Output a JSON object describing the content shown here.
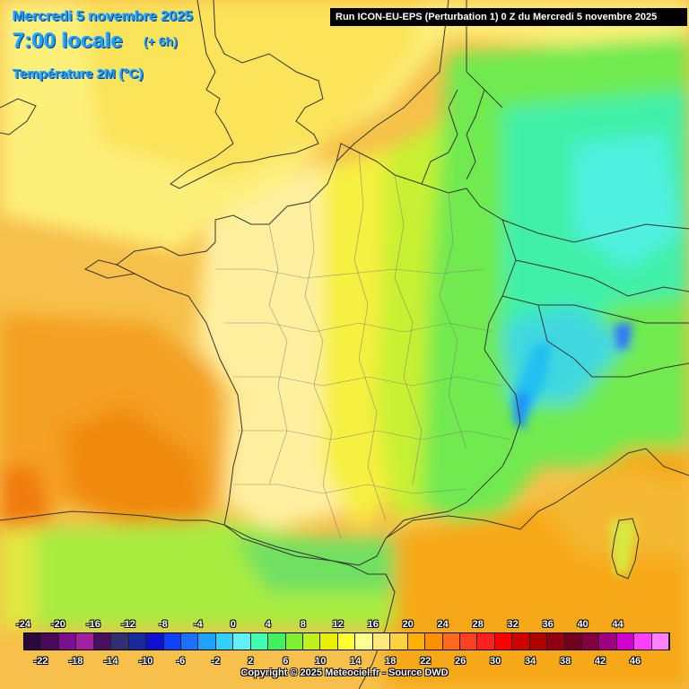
{
  "header": {
    "date_line": "Mercredi 5 novembre 2025",
    "time_line": "7:00 locale",
    "offset": "(+ 6h)",
    "parameter": "Température 2M (°C)",
    "run_info": "Run ICON-EU-EPS (Perturbation 1) 0 Z du Mercredi 5 novembre 2025"
  },
  "legend": {
    "top_labels": [
      "-24",
      "-20",
      "-16",
      "-12",
      "-8",
      "-4",
      "0",
      "4",
      "8",
      "12",
      "16",
      "20",
      "24",
      "28",
      "32",
      "36",
      "40",
      "44"
    ],
    "bottom_labels": [
      "-22",
      "-18",
      "-14",
      "-10",
      "-6",
      "-2",
      "2",
      "6",
      "10",
      "14",
      "18",
      "22",
      "26",
      "30",
      "34",
      "38",
      "42",
      "46"
    ],
    "colors": [
      "#2a0a3a",
      "#4a0a5a",
      "#7a1090",
      "#a020a0",
      "#4a1060",
      "#303070",
      "#1a2a9a",
      "#1010d0",
      "#1040ff",
      "#1a70ff",
      "#20a0ff",
      "#30d0ff",
      "#60f0ff",
      "#40ffb0",
      "#40f060",
      "#80f030",
      "#c0f020",
      "#e8f000",
      "#ffff30",
      "#ffff90",
      "#ffe880",
      "#ffd040",
      "#ffb000",
      "#ff9000",
      "#ff6a20",
      "#ff4020",
      "#ff2020",
      "#ff0000",
      "#d00000",
      "#b00000",
      "#900010",
      "#700020",
      "#800040",
      "#a00080",
      "#d000d0",
      "#ff40ff",
      "#ff80ff"
    ]
  },
  "copyright": "Copyright © 2025 Meteociel.fr - Source DWD"
}
